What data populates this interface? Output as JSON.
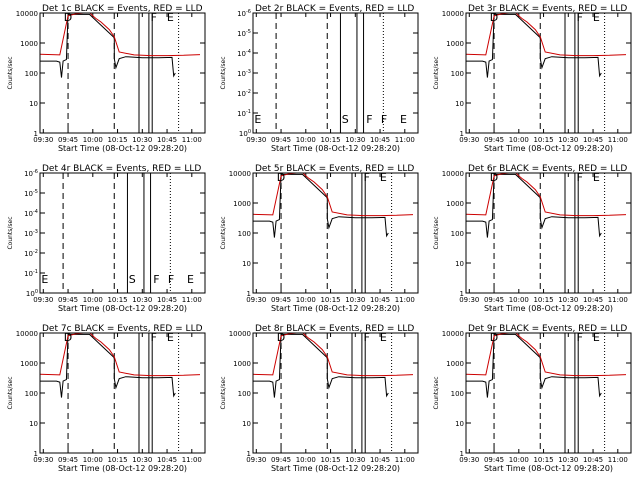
{
  "colors": {
    "events": "#000000",
    "lld": "#cc0000",
    "axis": "#000000",
    "background": "#ffffff"
  },
  "xlabel": "Start Time (08-Oct-12 09:28:20)",
  "ylabel": "Counts/sec",
  "x_tick_labels": [
    "09:30",
    "09:45",
    "10:00",
    "10:15",
    "10:30",
    "10:45",
    "11:00"
  ],
  "chart_data": [
    {
      "type": "line",
      "title": "Det 1c BLACK = Events, RED = LLD",
      "xlabel": "Start Time (08-Oct-12 09:28:20)",
      "ylabel": "Counts/sec",
      "xlim": [
        "09:28",
        "11:08"
      ],
      "ylim": [
        1,
        10000
      ],
      "yscale": "log",
      "y_tick_labels": [
        "1",
        "10",
        "100",
        "1000",
        "10000"
      ],
      "x_tick_labels": [
        "09:30",
        "09:45",
        "10:00",
        "10:15",
        "10:30",
        "10:45",
        "11:00"
      ],
      "flags": [
        "D",
        "F",
        "E"
      ],
      "no_data": false,
      "series": [
        {
          "name": "Events",
          "color": "#000000",
          "x": [
            "09:28",
            "09:38",
            "09:40",
            "09:41",
            "09:42",
            "09:44",
            "09:45",
            "09:58",
            "10:13",
            "10:13",
            "10:14",
            "10:16",
            "10:20",
            "10:30",
            "10:40",
            "10:48",
            "10:49",
            "10:50"
          ],
          "y": [
            250,
            250,
            230,
            70,
            250,
            280,
            9000,
            9000,
            1500,
            300,
            150,
            300,
            350,
            320,
            320,
            330,
            80,
            100
          ]
        },
        {
          "name": "LLD",
          "color": "#cc0000",
          "x": [
            "09:28",
            "09:40",
            "09:45",
            "09:50",
            "09:58",
            "10:00",
            "10:02",
            "10:05",
            "10:10",
            "10:13",
            "10:16",
            "10:25",
            "10:35",
            "10:45",
            "10:55",
            "11:05"
          ],
          "y": [
            420,
            400,
            8000,
            9500,
            10500,
            8000,
            6500,
            5000,
            2800,
            1600,
            500,
            400,
            380,
            380,
            390,
            410
          ]
        }
      ],
      "dashed_lines_x": [
        "09:45",
        "10:13"
      ],
      "solid_lines_x": [
        "10:28",
        "10:34",
        "10:36"
      ],
      "dotted_lines_x": [
        "10:52"
      ]
    },
    {
      "type": "line",
      "title": "Det 2r BLACK = Events, RED = LLD",
      "xlabel": "Start Time (08-Oct-12 09:28:20)",
      "ylabel": "Counts/sec",
      "xlim": [
        "09:28",
        "11:08"
      ],
      "ylim": [
        1,
        1e-06
      ],
      "yscale": "log",
      "y_tick_labels": [
        "10^0",
        "10^-1",
        "10^-2",
        "10^-3",
        "10^-4",
        "10^-5",
        "10^-6"
      ],
      "x_tick_labels": [
        "09:30",
        "09:45",
        "10:00",
        "10:15",
        "10:30",
        "10:45",
        "11:00"
      ],
      "flags": [
        "E",
        "S",
        "F",
        "F",
        "E"
      ],
      "no_data": true,
      "series": [],
      "dashed_lines_x": [
        "09:42",
        "10:13"
      ],
      "solid_lines_x": [
        "10:21",
        "10:31",
        "10:35"
      ],
      "dotted_lines_x": [
        "10:47"
      ]
    },
    {
      "type": "line",
      "title": "Det 3r BLACK = Events, RED = LLD",
      "xlabel": "Start Time (08-Oct-12 09:28:20)",
      "ylabel": "Counts/sec",
      "xlim": [
        "09:28",
        "11:08"
      ],
      "ylim": [
        1,
        10000
      ],
      "yscale": "log",
      "y_tick_labels": [
        "1",
        "10",
        "100",
        "1000",
        "10000"
      ],
      "x_tick_labels": [
        "09:30",
        "09:45",
        "10:00",
        "10:15",
        "10:30",
        "10:45",
        "11:00"
      ],
      "flags": [
        "D",
        "F",
        "E"
      ],
      "no_data": false,
      "series": [
        {
          "name": "Events",
          "color": "#000000",
          "x": [
            "09:28",
            "09:38",
            "09:40",
            "09:41",
            "09:42",
            "09:44",
            "09:45",
            "09:58",
            "10:13",
            "10:13",
            "10:14",
            "10:16",
            "10:20",
            "10:30",
            "10:40",
            "10:48",
            "10:49",
            "10:50"
          ],
          "y": [
            250,
            250,
            230,
            70,
            250,
            280,
            9000,
            9000,
            1500,
            300,
            150,
            300,
            350,
            320,
            320,
            330,
            80,
            100
          ]
        },
        {
          "name": "LLD",
          "color": "#cc0000",
          "x": [
            "09:28",
            "09:40",
            "09:45",
            "09:50",
            "09:58",
            "10:00",
            "10:02",
            "10:05",
            "10:10",
            "10:13",
            "10:16",
            "10:25",
            "10:35",
            "10:45",
            "10:55",
            "11:05"
          ],
          "y": [
            420,
            400,
            8000,
            9500,
            10500,
            8000,
            6500,
            5000,
            2800,
            1600,
            500,
            400,
            380,
            380,
            390,
            410
          ]
        }
      ],
      "dashed_lines_x": [
        "09:45",
        "10:13"
      ],
      "solid_lines_x": [
        "10:28",
        "10:34",
        "10:36"
      ],
      "dotted_lines_x": [
        "10:52"
      ]
    },
    {
      "type": "line",
      "title": "Det 4r BLACK = Events, RED = LLD",
      "xlabel": "Start Time (08-Oct-12 09:28:20)",
      "ylabel": "Counts/sec",
      "xlim": [
        "09:28",
        "11:08"
      ],
      "ylim": [
        1,
        1e-06
      ],
      "yscale": "log",
      "y_tick_labels": [
        "10^0",
        "10^-1",
        "10^-2",
        "10^-3",
        "10^-4",
        "10^-5",
        "10^-6"
      ],
      "x_tick_labels": [
        "09:30",
        "09:45",
        "10:00",
        "10:15",
        "10:30",
        "10:45",
        "11:00"
      ],
      "flags": [
        "E",
        "S",
        "F",
        "F",
        "E"
      ],
      "no_data": true,
      "series": [],
      "dashed_lines_x": [
        "09:42",
        "10:13"
      ],
      "solid_lines_x": [
        "10:21",
        "10:31",
        "10:35"
      ],
      "dotted_lines_x": [
        "10:47"
      ]
    },
    {
      "type": "line",
      "title": "Det 5r BLACK = Events, RED = LLD",
      "xlabel": "Start Time (08-Oct-12 09:28:20)",
      "ylabel": "Counts/sec",
      "xlim": [
        "09:28",
        "11:08"
      ],
      "ylim": [
        1,
        10000
      ],
      "yscale": "log",
      "y_tick_labels": [
        "1",
        "10",
        "100",
        "1000",
        "10000"
      ],
      "x_tick_labels": [
        "09:30",
        "09:45",
        "10:00",
        "10:15",
        "10:30",
        "10:45",
        "11:00"
      ],
      "flags": [
        "D",
        "F",
        "E"
      ],
      "no_data": false,
      "series": [
        {
          "name": "Events",
          "color": "#000000",
          "x": [
            "09:28",
            "09:38",
            "09:40",
            "09:41",
            "09:42",
            "09:44",
            "09:45",
            "09:58",
            "10:13",
            "10:13",
            "10:14",
            "10:16",
            "10:20",
            "10:30",
            "10:40",
            "10:48",
            "10:49",
            "10:50"
          ],
          "y": [
            250,
            250,
            230,
            70,
            250,
            280,
            9000,
            9000,
            1500,
            300,
            150,
            300,
            350,
            320,
            320,
            330,
            80,
            100
          ]
        },
        {
          "name": "LLD",
          "color": "#cc0000",
          "x": [
            "09:28",
            "09:40",
            "09:45",
            "09:50",
            "09:58",
            "10:00",
            "10:02",
            "10:05",
            "10:10",
            "10:13",
            "10:16",
            "10:25",
            "10:35",
            "10:45",
            "10:55",
            "11:05"
          ],
          "y": [
            420,
            400,
            8000,
            9500,
            10500,
            8000,
            6500,
            5000,
            2800,
            1600,
            500,
            400,
            380,
            380,
            390,
            410
          ]
        }
      ],
      "dashed_lines_x": [
        "09:45",
        "10:13"
      ],
      "solid_lines_x": [
        "10:28",
        "10:34",
        "10:36"
      ],
      "dotted_lines_x": [
        "10:52"
      ]
    },
    {
      "type": "line",
      "title": "Det 6r BLACK = Events, RED = LLD",
      "xlabel": "Start Time (08-Oct-12 09:28:20)",
      "ylabel": "Counts/sec",
      "xlim": [
        "09:28",
        "11:08"
      ],
      "ylim": [
        1,
        10000
      ],
      "yscale": "log",
      "y_tick_labels": [
        "1",
        "10",
        "100",
        "1000",
        "10000"
      ],
      "x_tick_labels": [
        "09:30",
        "09:45",
        "10:00",
        "10:15",
        "10:30",
        "10:45",
        "11:00"
      ],
      "flags": [
        "D",
        "F",
        "E"
      ],
      "no_data": false,
      "series": [
        {
          "name": "Events",
          "color": "#000000",
          "x": [
            "09:28",
            "09:38",
            "09:40",
            "09:41",
            "09:42",
            "09:44",
            "09:45",
            "09:58",
            "10:13",
            "10:13",
            "10:14",
            "10:16",
            "10:20",
            "10:30",
            "10:40",
            "10:48",
            "10:49",
            "10:50"
          ],
          "y": [
            250,
            250,
            230,
            70,
            250,
            280,
            9000,
            9000,
            1500,
            300,
            150,
            300,
            350,
            320,
            320,
            330,
            80,
            100
          ]
        },
        {
          "name": "LLD",
          "color": "#cc0000",
          "x": [
            "09:28",
            "09:40",
            "09:45",
            "09:50",
            "09:58",
            "10:00",
            "10:02",
            "10:05",
            "10:10",
            "10:13",
            "10:16",
            "10:25",
            "10:35",
            "10:45",
            "10:55",
            "11:05"
          ],
          "y": [
            420,
            400,
            8000,
            9500,
            10500,
            8000,
            6500,
            5000,
            2800,
            1600,
            500,
            400,
            380,
            380,
            390,
            410
          ]
        }
      ],
      "dashed_lines_x": [
        "09:45",
        "10:13"
      ],
      "solid_lines_x": [
        "10:28",
        "10:34",
        "10:36"
      ],
      "dotted_lines_x": [
        "10:52"
      ]
    },
    {
      "type": "line",
      "title": "Det 7c BLACK = Events, RED = LLD",
      "xlabel": "Start Time (08-Oct-12 09:28:20)",
      "ylabel": "Counts/sec",
      "xlim": [
        "09:28",
        "11:08"
      ],
      "ylim": [
        1,
        10000
      ],
      "yscale": "log",
      "y_tick_labels": [
        "1",
        "10",
        "100",
        "1000",
        "10000"
      ],
      "x_tick_labels": [
        "09:30",
        "09:45",
        "10:00",
        "10:15",
        "10:30",
        "10:45",
        "11:00"
      ],
      "flags": [
        "D",
        "F",
        "E"
      ],
      "no_data": false,
      "series": [
        {
          "name": "Events",
          "color": "#000000",
          "x": [
            "09:28",
            "09:38",
            "09:40",
            "09:41",
            "09:42",
            "09:44",
            "09:45",
            "09:58",
            "10:13",
            "10:13",
            "10:14",
            "10:16",
            "10:20",
            "10:30",
            "10:40",
            "10:48",
            "10:49",
            "10:50"
          ],
          "y": [
            250,
            250,
            230,
            70,
            250,
            280,
            9000,
            9000,
            1500,
            300,
            150,
            300,
            350,
            320,
            320,
            330,
            80,
            100
          ]
        },
        {
          "name": "LLD",
          "color": "#cc0000",
          "x": [
            "09:28",
            "09:40",
            "09:45",
            "09:50",
            "09:58",
            "10:00",
            "10:02",
            "10:05",
            "10:10",
            "10:13",
            "10:16",
            "10:25",
            "10:35",
            "10:45",
            "10:55",
            "11:05"
          ],
          "y": [
            420,
            400,
            8000,
            9500,
            10500,
            8000,
            6500,
            5000,
            2800,
            1600,
            500,
            400,
            380,
            380,
            390,
            410
          ]
        }
      ],
      "dashed_lines_x": [
        "09:45",
        "10:13"
      ],
      "solid_lines_x": [
        "10:28",
        "10:34",
        "10:36"
      ],
      "dotted_lines_x": [
        "10:52"
      ]
    },
    {
      "type": "line",
      "title": "Det 8r BLACK = Events, RED = LLD",
      "xlabel": "Start Time (08-Oct-12 09:28:20)",
      "ylabel": "Counts/sec",
      "xlim": [
        "09:28",
        "11:08"
      ],
      "ylim": [
        1,
        10000
      ],
      "yscale": "log",
      "y_tick_labels": [
        "1",
        "10",
        "100",
        "1000",
        "10000"
      ],
      "x_tick_labels": [
        "09:30",
        "09:45",
        "10:00",
        "10:15",
        "10:30",
        "10:45",
        "11:00"
      ],
      "flags": [
        "D",
        "F",
        "E"
      ],
      "no_data": false,
      "series": [
        {
          "name": "Events",
          "color": "#000000",
          "x": [
            "09:28",
            "09:38",
            "09:40",
            "09:41",
            "09:42",
            "09:44",
            "09:45",
            "09:58",
            "10:13",
            "10:13",
            "10:14",
            "10:16",
            "10:20",
            "10:30",
            "10:40",
            "10:48",
            "10:49",
            "10:50"
          ],
          "y": [
            250,
            250,
            230,
            70,
            250,
            280,
            9000,
            9000,
            1500,
            300,
            150,
            300,
            350,
            320,
            320,
            330,
            80,
            100
          ]
        },
        {
          "name": "LLD",
          "color": "#cc0000",
          "x": [
            "09:28",
            "09:40",
            "09:45",
            "09:50",
            "09:58",
            "10:00",
            "10:02",
            "10:05",
            "10:10",
            "10:13",
            "10:16",
            "10:25",
            "10:35",
            "10:45",
            "10:55",
            "11:05"
          ],
          "y": [
            420,
            400,
            8000,
            9500,
            10500,
            8000,
            6500,
            5000,
            2800,
            1600,
            500,
            400,
            380,
            380,
            390,
            410
          ]
        }
      ],
      "dashed_lines_x": [
        "09:45",
        "10:13"
      ],
      "solid_lines_x": [
        "10:28",
        "10:34",
        "10:36"
      ],
      "dotted_lines_x": [
        "10:52"
      ]
    },
    {
      "type": "line",
      "title": "Det 9r BLACK = Events, RED = LLD",
      "xlabel": "Start Time (08-Oct-12 09:28:20)",
      "ylabel": "Counts/sec",
      "xlim": [
        "09:28",
        "11:08"
      ],
      "ylim": [
        1,
        10000
      ],
      "yscale": "log",
      "y_tick_labels": [
        "1",
        "10",
        "100",
        "1000",
        "10000"
      ],
      "x_tick_labels": [
        "09:30",
        "09:45",
        "10:00",
        "10:15",
        "10:30",
        "10:45",
        "11:00"
      ],
      "flags": [
        "D",
        "F",
        "E"
      ],
      "no_data": false,
      "series": [
        {
          "name": "Events",
          "color": "#000000",
          "x": [
            "09:28",
            "09:38",
            "09:40",
            "09:41",
            "09:42",
            "09:44",
            "09:45",
            "09:58",
            "10:13",
            "10:13",
            "10:14",
            "10:16",
            "10:20",
            "10:30",
            "10:40",
            "10:48",
            "10:49",
            "10:50"
          ],
          "y": [
            250,
            250,
            230,
            70,
            250,
            280,
            9000,
            9000,
            1500,
            300,
            150,
            300,
            350,
            320,
            320,
            330,
            80,
            100
          ]
        },
        {
          "name": "LLD",
          "color": "#cc0000",
          "x": [
            "09:28",
            "09:40",
            "09:45",
            "09:50",
            "09:58",
            "10:00",
            "10:02",
            "10:05",
            "10:10",
            "10:13",
            "10:16",
            "10:25",
            "10:35",
            "10:45",
            "10:55",
            "11:05"
          ],
          "y": [
            420,
            400,
            8000,
            9500,
            10500,
            8000,
            6500,
            5000,
            2800,
            1600,
            500,
            400,
            380,
            380,
            390,
            410
          ]
        }
      ],
      "dashed_lines_x": [
        "09:45",
        "10:13"
      ],
      "solid_lines_x": [
        "10:28",
        "10:34",
        "10:36"
      ],
      "dotted_lines_x": [
        "10:52"
      ]
    }
  ]
}
